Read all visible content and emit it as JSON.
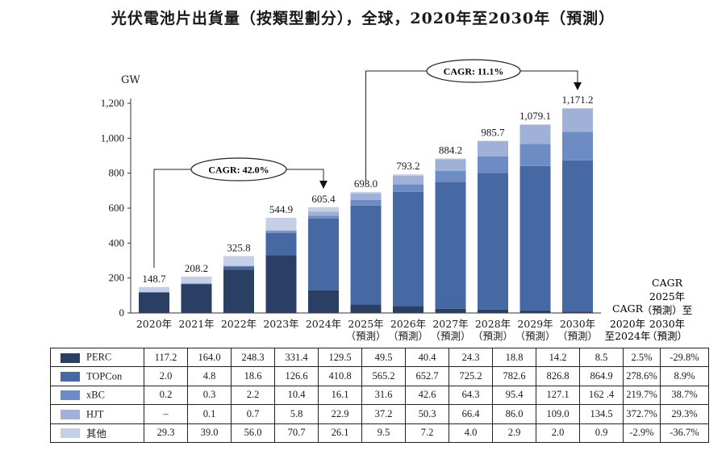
{
  "chart_data": {
    "type": "stacked-bar",
    "title": "光伏電池片出貨量（按類型劃分），全球，2020年至2030年（預測）",
    "ylabel": "GW",
    "ylim": [
      0,
      1200
    ],
    "yticks": [
      "0",
      "200",
      "400",
      "600",
      "800",
      "1,000",
      "1,200"
    ],
    "ytick_values": [
      0,
      200,
      400,
      600,
      800,
      1000,
      1200
    ],
    "categories": [
      [
        "2020年"
      ],
      [
        "2021年"
      ],
      [
        "2022年"
      ],
      [
        "2023年"
      ],
      [
        "2024年"
      ],
      [
        "2025年",
        "（預測）"
      ],
      [
        "2026年",
        "（預測）"
      ],
      [
        "2027年",
        "（預測）"
      ],
      [
        "2028年",
        "（預測）"
      ],
      [
        "2029年",
        "（預測）"
      ],
      [
        "2030年",
        "（預測）"
      ]
    ],
    "totals": [
      "148.7",
      "208.2",
      "325.8",
      "544.9",
      "605.4",
      "693.0",
      "793.2",
      "884.2",
      "985.7",
      "1,079.1",
      "1,171.2"
    ],
    "series": [
      {
        "name": "PERC",
        "color": "#2b3f64",
        "values": [
          117.2,
          164.0,
          248.3,
          331.4,
          129.5,
          49.5,
          40.4,
          24.3,
          18.8,
          14.2,
          8.5
        ],
        "labels": [
          "117.2",
          "164.0",
          "248.3",
          "331.4",
          "129.5",
          "49.5",
          "40.4",
          "24.3",
          "18.8",
          "14.2",
          "8.5"
        ],
        "cagr1": "2.5%",
        "cagr2": "-29.8%"
      },
      {
        "name": "TOPCon",
        "color": "#4668a3",
        "values": [
          2.0,
          4.8,
          18.6,
          126.6,
          410.8,
          565.2,
          652.7,
          725.2,
          782.6,
          826.8,
          864.9
        ],
        "labels": [
          "2.0",
          "4.8",
          "18.6",
          "126.6",
          "410.8",
          "565.2",
          "652.7",
          "725.2",
          "782.6",
          "826.8",
          "864.9"
        ],
        "cagr1": "278.6%",
        "cagr2": "8.9%"
      },
      {
        "name": "xBC",
        "color": "#6d8cc4",
        "values": [
          0.2,
          0.3,
          2.2,
          10.4,
          16.1,
          31.6,
          42.6,
          64.3,
          95.4,
          127.1,
          162.4
        ],
        "labels": [
          "0.2",
          "0.3",
          "2.2",
          "10.4",
          "16.1",
          "31.6",
          "42.6",
          "64.3",
          "95.4",
          "127.1",
          "162 .4"
        ],
        "cagr1": "219.7%",
        "cagr2": "38.7%"
      },
      {
        "name": "HJT",
        "color": "#9fb1d6",
        "values": [
          0,
          0.1,
          0.7,
          5.8,
          22.9,
          37.2,
          50.3,
          66.4,
          86.0,
          109.0,
          134.5
        ],
        "labels": [
          "–",
          "0.1",
          "0.7",
          "5.8",
          "22.9",
          "37.2",
          "50.3",
          "66.4",
          "86.0",
          "109.0",
          "134.5"
        ],
        "cagr1": "372.7%",
        "cagr2": "29.3%"
      },
      {
        "name": "其他",
        "color": "#c5d0e6",
        "values": [
          29.3,
          39.0,
          56.0,
          70.7,
          26.1,
          9.5,
          7.2,
          4.0,
          2.9,
          2.0,
          0.9
        ],
        "labels": [
          "29.3",
          "39.0",
          "56.0",
          "70.7",
          "26.1",
          "9.5",
          "7.2",
          "4.0",
          "2.9",
          "2.0",
          "0.9"
        ],
        "cagr1": "-2.9%",
        "cagr2": "-36.7%"
      }
    ],
    "cagr_columns": {
      "col1": [
        "CAGR",
        "2020年",
        "至2024年"
      ],
      "col2": [
        "CAGR",
        "2025年",
        "（預測）至",
        "2030年",
        "（預測）"
      ]
    },
    "annotations": [
      {
        "text": "CAGR: 42.0%",
        "from_index": 0,
        "to_index": 4
      },
      {
        "text": "CAGR: 11.1%",
        "from_index": 5,
        "to_index": 10
      }
    ]
  }
}
